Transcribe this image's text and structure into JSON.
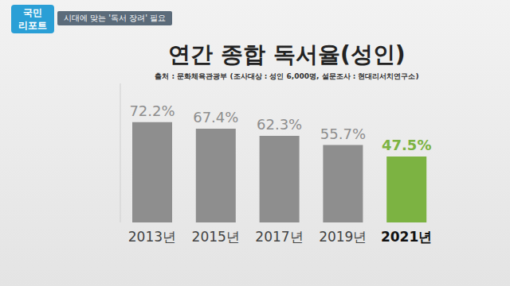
{
  "chart_data": {
    "type": "bar",
    "title": "연간 종합 독서율(성인)",
    "subtitle": "출처 : 문화체육관광부 (조사대상 : 성인 6,000명, 설문조사 : 현대리서치연구소)",
    "annotations": [
      "국민 리포트",
      "시대에 맞는 '독서 장려' 필요"
    ],
    "categories": [
      "2013년",
      "2015년",
      "2017년",
      "2019년",
      "2021년"
    ],
    "values": [
      72.2,
      67.4,
      62.3,
      55.7,
      47.5
    ],
    "value_labels": [
      "72.2%",
      "67.4%",
      "62.3%",
      "55.7%",
      "47.5%"
    ],
    "colors": [
      "#8e8e8e",
      "#8e8e8e",
      "#8e8e8e",
      "#8e8e8e",
      "#7cb342"
    ],
    "ylim": [
      0,
      100
    ],
    "data_labels": true,
    "tick_labels": "x",
    "grid": false
  }
}
